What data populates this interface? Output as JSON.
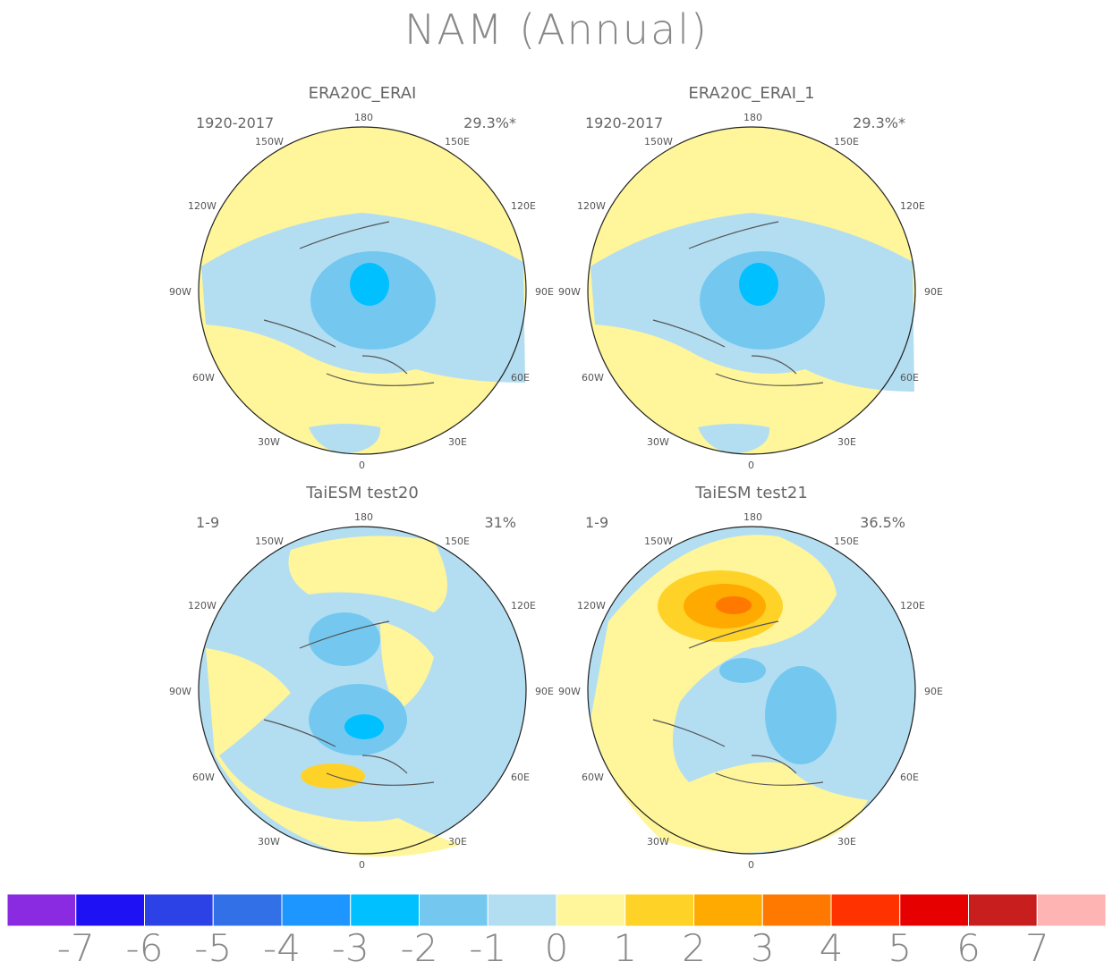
{
  "title": "NAM (Annual)",
  "panels": [
    {
      "id": "era20c-erai",
      "title": "ERA20C_ERAI",
      "period": "1920-2017",
      "variance": "29.3%*"
    },
    {
      "id": "era20c-erai-1",
      "title": "ERA20C_ERAI_1",
      "period": "1920-2017",
      "variance": "29.3%*"
    },
    {
      "id": "taiesm-test20",
      "title": "TaiESM test20",
      "period": "1-9",
      "variance": "31%"
    },
    {
      "id": "taiesm-test21",
      "title": "TaiESM test21",
      "period": "1-9",
      "variance": "36.5%"
    }
  ],
  "lon_labels": [
    "180",
    "150E",
    "120E",
    "90E",
    "60E",
    "30E",
    "0",
    "30W",
    "60W",
    "90W",
    "120W",
    "150W"
  ],
  "colorbar": {
    "ticks": [
      "-7",
      "-6",
      "-5",
      "-4",
      "-3",
      "-2",
      "-1",
      "0",
      "1",
      "2",
      "3",
      "4",
      "5",
      "6",
      "7"
    ],
    "colors": [
      "#8a2be2",
      "#1e12f5",
      "#2c41e6",
      "#3270e8",
      "#1e96ff",
      "#00c0ff",
      "#74c8f0",
      "#b3def2",
      "#fff59a",
      "#ffd228",
      "#ffaa00",
      "#ff7800",
      "#ff3200",
      "#e60000",
      "#c81e1e",
      "#ffb4b4"
    ]
  }
}
